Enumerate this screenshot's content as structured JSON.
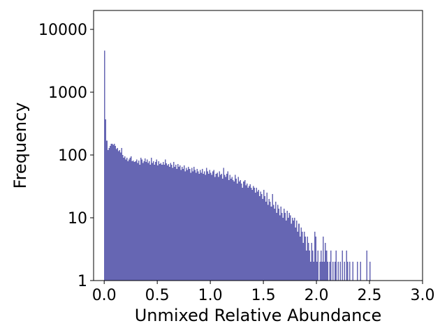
{
  "chart_data": {
    "type": "bar",
    "subtype": "histogram",
    "title": "",
    "xlabel": "Unmixed Relative Abundance",
    "ylabel": "Frequency",
    "xlim": [
      -0.1,
      3.0
    ],
    "ylim": [
      1,
      20000
    ],
    "yscale": "log",
    "grid": false,
    "legend": "none",
    "bar_color": "#6666b3",
    "bin_width": 0.01,
    "x_ticks": [
      0.0,
      0.5,
      1.0,
      1.5,
      2.0,
      2.5,
      3.0
    ],
    "x_tick_labels": [
      "0.0",
      "0.5",
      "1.0",
      "1.5",
      "2.0",
      "2.5",
      "3.0"
    ],
    "y_ticks": [
      1,
      10,
      100,
      1000,
      10000
    ],
    "y_tick_labels": [
      "1",
      "10",
      "100",
      "1000",
      "10000"
    ],
    "bin_starts": [
      0.0,
      0.01,
      0.02,
      0.03,
      0.04,
      0.05,
      0.06,
      0.07,
      0.08,
      0.09,
      0.1,
      0.11,
      0.12,
      0.13,
      0.14,
      0.15,
      0.16,
      0.17,
      0.18,
      0.19,
      0.2,
      0.21,
      0.22,
      0.23,
      0.24,
      0.25,
      0.26,
      0.27,
      0.28,
      0.29,
      0.3,
      0.31,
      0.32,
      0.33,
      0.34,
      0.35,
      0.36,
      0.37,
      0.38,
      0.39,
      0.4,
      0.41,
      0.42,
      0.43,
      0.44,
      0.45,
      0.46,
      0.47,
      0.48,
      0.49,
      0.5,
      0.51,
      0.52,
      0.53,
      0.54,
      0.55,
      0.56,
      0.57,
      0.58,
      0.59,
      0.6,
      0.61,
      0.62,
      0.63,
      0.64,
      0.65,
      0.66,
      0.67,
      0.68,
      0.69,
      0.7,
      0.71,
      0.72,
      0.73,
      0.74,
      0.75,
      0.76,
      0.77,
      0.78,
      0.79,
      0.8,
      0.81,
      0.82,
      0.83,
      0.84,
      0.85,
      0.86,
      0.87,
      0.88,
      0.89,
      0.9,
      0.91,
      0.92,
      0.93,
      0.94,
      0.95,
      0.96,
      0.97,
      0.98,
      0.99,
      1.0,
      1.01,
      1.02,
      1.03,
      1.04,
      1.05,
      1.06,
      1.07,
      1.08,
      1.09,
      1.1,
      1.11,
      1.12,
      1.13,
      1.14,
      1.15,
      1.16,
      1.17,
      1.18,
      1.19,
      1.2,
      1.21,
      1.22,
      1.23,
      1.24,
      1.25,
      1.26,
      1.27,
      1.28,
      1.29,
      1.3,
      1.31,
      1.32,
      1.33,
      1.34,
      1.35,
      1.36,
      1.37,
      1.38,
      1.39,
      1.4,
      1.41,
      1.42,
      1.43,
      1.44,
      1.45,
      1.46,
      1.47,
      1.48,
      1.49,
      1.5,
      1.51,
      1.52,
      1.53,
      1.54,
      1.55,
      1.56,
      1.57,
      1.58,
      1.59,
      1.6,
      1.61,
      1.62,
      1.63,
      1.64,
      1.65,
      1.66,
      1.67,
      1.68,
      1.69,
      1.7,
      1.71,
      1.72,
      1.73,
      1.74,
      1.75,
      1.76,
      1.77,
      1.78,
      1.79,
      1.8,
      1.81,
      1.82,
      1.83,
      1.84,
      1.85,
      1.86,
      1.87,
      1.88,
      1.89,
      1.9,
      1.91,
      1.92,
      1.93,
      1.94,
      1.95,
      1.96,
      1.97,
      1.98,
      1.99,
      2.0,
      2.01,
      2.02,
      2.03,
      2.04,
      2.05,
      2.06,
      2.07,
      2.08,
      2.09,
      2.1,
      2.11,
      2.12,
      2.13,
      2.14,
      2.15,
      2.16,
      2.17,
      2.18,
      2.19,
      2.2,
      2.21,
      2.22,
      2.23,
      2.24,
      2.25,
      2.26,
      2.27,
      2.28,
      2.29,
      2.3,
      2.31,
      2.32,
      2.33,
      2.34,
      2.35,
      2.36,
      2.37,
      2.38,
      2.39,
      2.4,
      2.41,
      2.42,
      2.43,
      2.44,
      2.45,
      2.46,
      2.47,
      2.48,
      2.49,
      2.5
    ],
    "values": [
      4600,
      370,
      170,
      120,
      130,
      140,
      150,
      150,
      145,
      150,
      140,
      125,
      130,
      115,
      120,
      110,
      130,
      100,
      90,
      95,
      85,
      90,
      80,
      85,
      90,
      95,
      80,
      82,
      78,
      80,
      85,
      75,
      82,
      70,
      90,
      85,
      75,
      80,
      88,
      78,
      85,
      75,
      80,
      70,
      90,
      75,
      80,
      70,
      78,
      85,
      68,
      80,
      72,
      75,
      70,
      78,
      70,
      85,
      74,
      68,
      72,
      65,
      75,
      70,
      62,
      78,
      65,
      70,
      60,
      72,
      65,
      68,
      58,
      65,
      60,
      68,
      55,
      62,
      58,
      65,
      60,
      52,
      62,
      55,
      65,
      58,
      52,
      60,
      55,
      50,
      58,
      52,
      60,
      50,
      55,
      48,
      62,
      55,
      50,
      58,
      52,
      48,
      55,
      58,
      45,
      50,
      52,
      45,
      55,
      48,
      50,
      42,
      62,
      48,
      45,
      50,
      55,
      40,
      48,
      42,
      45,
      40,
      38,
      48,
      42,
      35,
      45,
      38,
      40,
      35,
      30,
      38,
      40,
      33,
      35,
      30,
      32,
      34,
      30,
      28,
      32,
      30,
      25,
      30,
      26,
      28,
      22,
      26,
      24,
      20,
      28,
      22,
      18,
      25,
      16,
      20,
      18,
      15,
      24,
      16,
      14,
      18,
      12,
      16,
      14,
      11,
      15,
      12,
      10,
      14,
      12,
      9,
      13,
      10,
      12,
      11,
      8,
      10,
      9,
      10,
      7,
      9,
      6,
      8,
      5,
      7,
      6,
      4,
      6,
      5,
      3,
      5,
      4,
      3,
      2,
      4,
      3,
      2,
      6,
      5,
      2,
      3,
      1,
      2,
      3,
      2,
      5,
      2,
      4,
      3,
      2,
      1,
      2,
      3,
      1,
      2,
      1,
      2,
      3,
      1,
      2,
      1,
      2,
      1,
      3,
      1,
      2,
      1,
      3,
      2,
      1,
      2,
      1,
      1,
      2,
      1,
      1,
      1,
      2,
      1,
      1,
      2,
      1,
      1,
      1,
      1,
      1,
      3,
      1,
      1,
      2
    ]
  }
}
